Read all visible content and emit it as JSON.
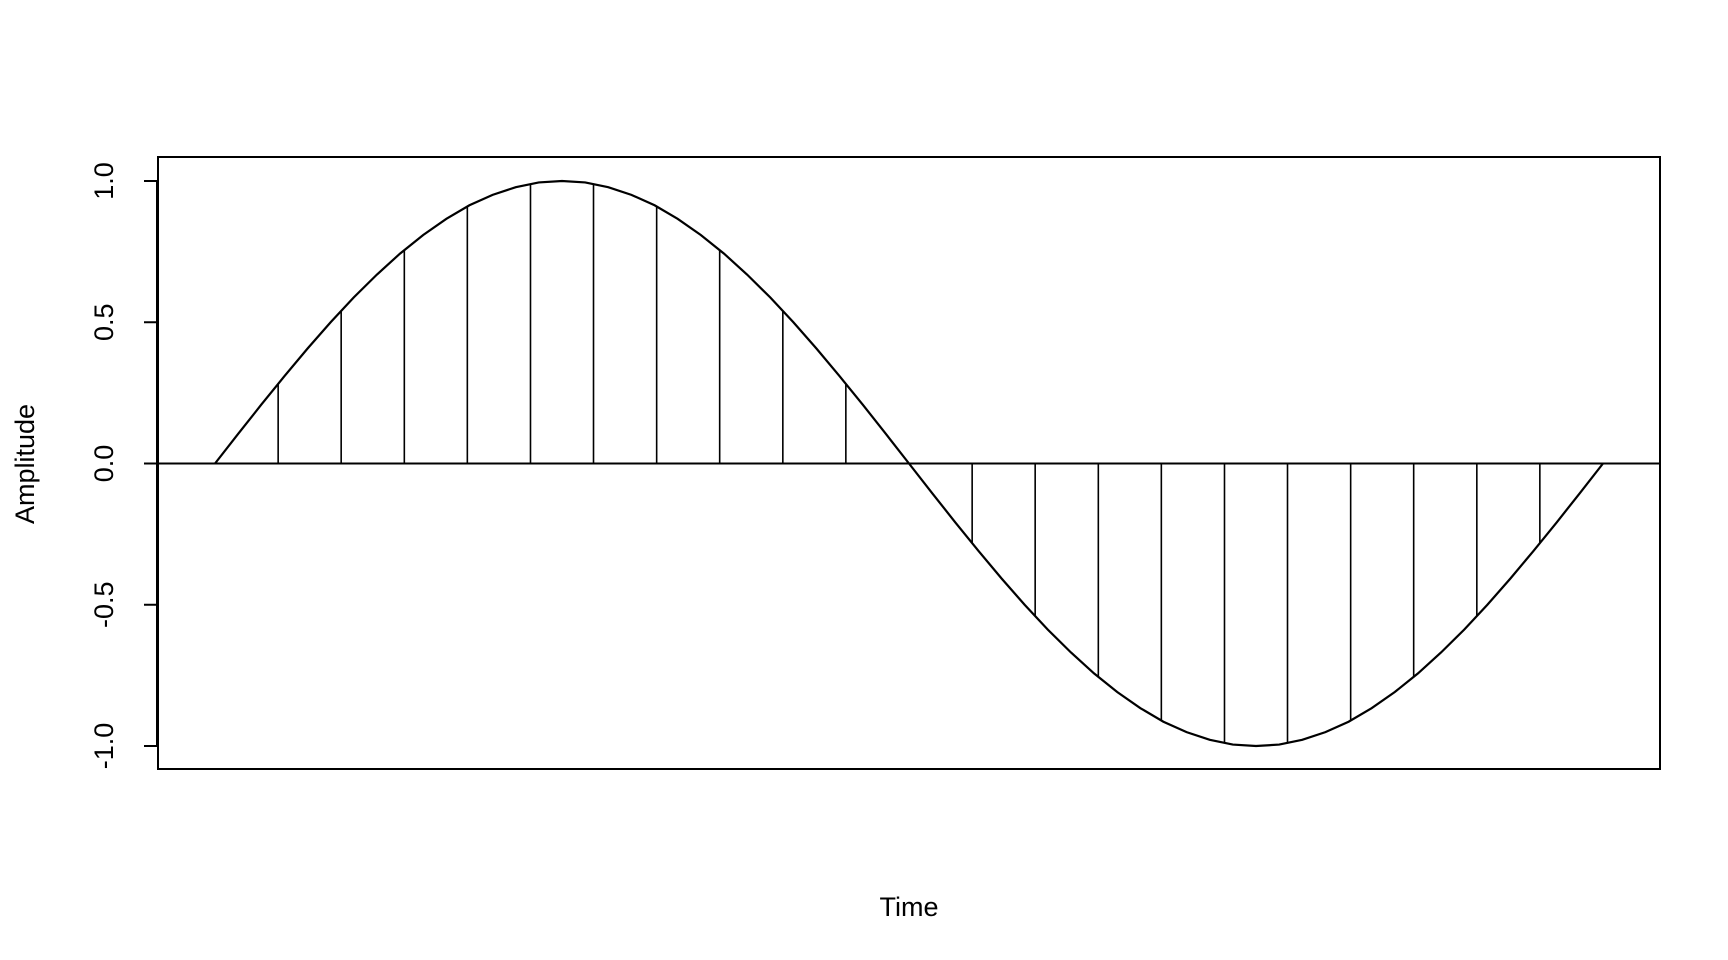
{
  "chart_data": {
    "type": "line",
    "title": "",
    "xlabel": "Time",
    "ylabel": "Amplitude",
    "ylim": [
      -1.08,
      1.08
    ],
    "y_ticks": [
      1.0,
      0.5,
      0.0,
      -0.5,
      -1.0
    ],
    "y_tick_labels": [
      "1.0",
      "0.5",
      "0.0",
      "-0.5",
      "-1.0"
    ],
    "x_ticks_shown": false,
    "grid": false,
    "series": [
      {
        "type": "line",
        "x": [
          0,
          0.0167,
          0.0333,
          0.05,
          0.0667,
          0.0833,
          0.1,
          0.1167,
          0.1333,
          0.15,
          0.1667,
          0.1833,
          0.2,
          0.2167,
          0.2333,
          0.25,
          0.2667,
          0.2833,
          0.3,
          0.3167,
          0.3333,
          0.35,
          0.3667,
          0.3833,
          0.4,
          0.4167,
          0.4333,
          0.45,
          0.4667,
          0.4833,
          0.5,
          0.5167,
          0.5333,
          0.55,
          0.5667,
          0.5833,
          0.6,
          0.6167,
          0.6333,
          0.65,
          0.6667,
          0.6833,
          0.7,
          0.7167,
          0.7333,
          0.75,
          0.7667,
          0.7833,
          0.8,
          0.8167,
          0.8333,
          0.85,
          0.8667,
          0.8833,
          0.9,
          0.9167,
          0.9333,
          0.95,
          0.9667,
          0.9833,
          1
        ],
        "y": [
          0,
          0.105,
          0.208,
          0.309,
          0.407,
          0.5,
          0.588,
          0.669,
          0.743,
          0.809,
          0.866,
          0.914,
          0.951,
          0.978,
          0.995,
          1,
          0.995,
          0.978,
          0.951,
          0.914,
          0.866,
          0.809,
          0.743,
          0.669,
          0.588,
          0.5,
          0.407,
          0.309,
          0.208,
          0.105,
          0,
          -0.105,
          -0.208,
          -0.309,
          -0.407,
          -0.5,
          -0.588,
          -0.669,
          -0.743,
          -0.809,
          -0.866,
          -0.914,
          -0.951,
          -0.978,
          -0.995,
          -1,
          -0.995,
          -0.978,
          -0.951,
          -0.914,
          -0.866,
          -0.809,
          -0.743,
          -0.669,
          -0.588,
          -0.5,
          -0.407,
          -0.309,
          -0.208,
          -0.105,
          0
        ]
      },
      {
        "type": "stem",
        "x": [
          0.0455,
          0.0909,
          0.1364,
          0.1818,
          0.2273,
          0.2727,
          0.3182,
          0.3636,
          0.4091,
          0.4545,
          0.5455,
          0.5909,
          0.6364,
          0.6818,
          0.7273,
          0.7727,
          0.8182,
          0.8636,
          0.9091,
          0.9545
        ],
        "y": [
          0.282,
          0.541,
          0.756,
          0.91,
          0.99,
          0.99,
          0.91,
          0.756,
          0.541,
          0.282,
          -0.282,
          -0.541,
          -0.756,
          -0.91,
          -0.99,
          -0.99,
          -0.91,
          -0.756,
          -0.541,
          -0.282
        ]
      }
    ],
    "reference_lines": [
      {
        "axis": "y",
        "value": 0
      }
    ]
  }
}
